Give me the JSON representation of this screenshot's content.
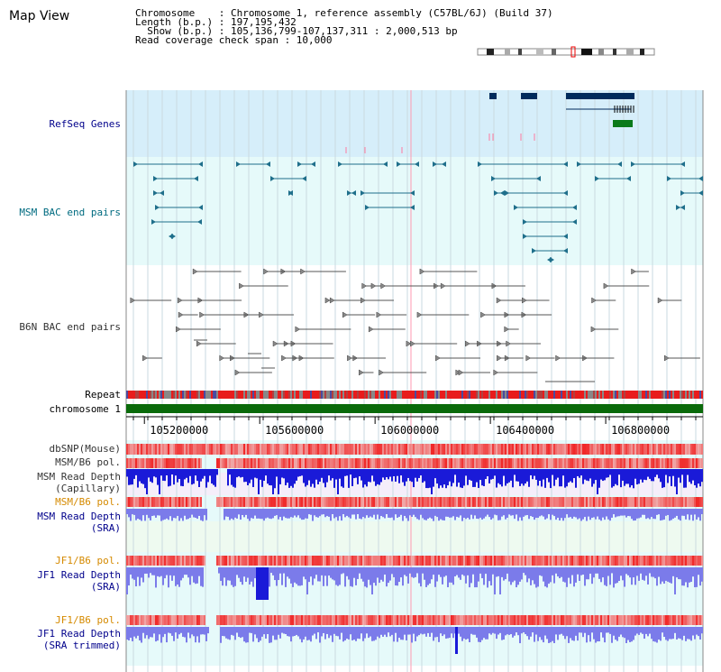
{
  "view": {
    "title": "Map View"
  },
  "header": {
    "line1": "Chromosome    : Chromosome 1, reference assembly (C57BL/6J) (Build 37)",
    "line2": "Length (b.p.) : 197,195,432",
    "line3": "  Show (b.p.) : 105,136,799-107,137,311 : 2,000,513 bp",
    "line4": "Read coverage check span : 10,000"
  },
  "tracks": {
    "refseq": "RefSeq Genes",
    "msm_bac": "MSM BAC end pairs",
    "b6n_bac": "B6N BAC end pairs",
    "repeat": "Repeat",
    "chromosome": "chromosome 1",
    "dbsnp": "dbSNP(Mouse)",
    "msm_b6_pol_1": "MSM/B6 pol.",
    "msm_depth_cap_1": "MSM Read Depth",
    "msm_depth_cap_2": "(Capillary)",
    "msm_b6_pol_2": "MSM/B6 pol.",
    "msm_depth_sra_1": "MSM Read Depth",
    "msm_depth_sra_2": "(SRA)",
    "jf1_b6_pol_1": "JF1/B6 pol.",
    "jf1_depth_1": "JF1 Read Depth",
    "jf1_depth_2": "(SRA)",
    "jf1_b6_pol_2": "JF1/B6 pol.",
    "jf1_trim_1": "JF1 Read Depth",
    "jf1_trim_2": "(SRA trimmed)"
  },
  "axis": {
    "ticks": [
      "105200000",
      "105600000",
      "106000000",
      "106400000",
      "106800000"
    ],
    "tick_values": [
      105200000,
      105600000,
      106000000,
      106400000,
      106800000
    ],
    "range": [
      105136799,
      107137311
    ]
  },
  "colors": {
    "refseq_bg": "#d6eefa",
    "msm_bg": "#e6fafa",
    "gene_blue": "#002b5c",
    "gene_green": "#0a7a1a",
    "msm_color": "#1f6f8b",
    "b6n_color": "#555555",
    "chrom_green": "#0a6a0a",
    "depth_blue": "#1a1ad8",
    "depth_lightblue": "#7b7bea",
    "label_blue": "#00008b",
    "label_orange": "#d58a00",
    "label_teal": "#006b80"
  }
}
